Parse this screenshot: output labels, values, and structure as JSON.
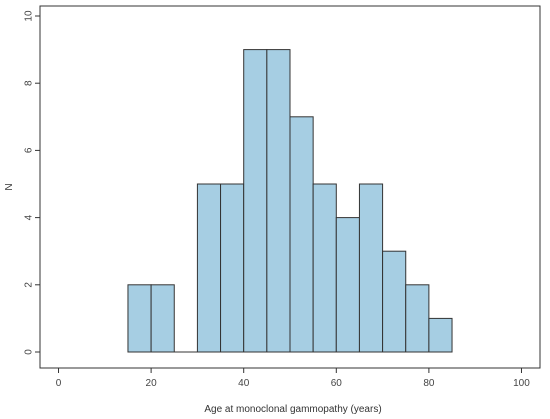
{
  "chart_data": {
    "type": "bar",
    "subtype": "histogram",
    "xlabel": "Age at monoclonal gammopathy (years)",
    "ylabel": "N",
    "xlim": [
      -4,
      104
    ],
    "ylim": [
      0,
      10
    ],
    "xticks": [
      0,
      20,
      40,
      60,
      80,
      100
    ],
    "yticks": [
      0,
      2,
      4,
      6,
      8,
      10
    ],
    "bin_width": 5,
    "bins": [
      {
        "x0": 15,
        "x1": 20,
        "count": 2
      },
      {
        "x0": 20,
        "x1": 25,
        "count": 2
      },
      {
        "x0": 25,
        "x1": 30,
        "count": 0
      },
      {
        "x0": 30,
        "x1": 35,
        "count": 5
      },
      {
        "x0": 35,
        "x1": 40,
        "count": 5
      },
      {
        "x0": 40,
        "x1": 45,
        "count": 9
      },
      {
        "x0": 45,
        "x1": 50,
        "count": 9
      },
      {
        "x0": 50,
        "x1": 55,
        "count": 7
      },
      {
        "x0": 55,
        "x1": 60,
        "count": 5
      },
      {
        "x0": 60,
        "x1": 65,
        "count": 4
      },
      {
        "x0": 65,
        "x1": 70,
        "count": 5
      },
      {
        "x0": 70,
        "x1": 75,
        "count": 3
      },
      {
        "x0": 75,
        "x1": 80,
        "count": 2
      },
      {
        "x0": 80,
        "x1": 85,
        "count": 1
      }
    ],
    "bar_color": "#a6cee3",
    "bar_edge_color": "#333333",
    "grid": false,
    "legend": "none"
  }
}
